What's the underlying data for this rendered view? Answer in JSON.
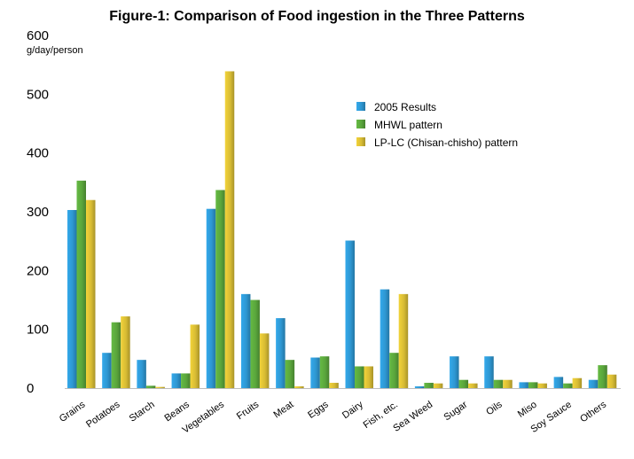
{
  "chart_data": {
    "type": "bar",
    "title": "Figure-1: Comparison of Food ingestion in the Three Patterns",
    "ylabel": "g/day/person",
    "xlabel": "",
    "ylim": [
      0,
      600
    ],
    "yticks": [
      0,
      100,
      200,
      300,
      400,
      500,
      600
    ],
    "grid": false,
    "legend_position": "top-right",
    "categories": [
      "Grains",
      "Potatoes",
      "Starch",
      "Beans",
      "Vegetables",
      "Fruits",
      "Meat",
      "Eggs",
      "Dairy",
      "Fish, etc.",
      "Sea Weed",
      "Sugar",
      "Oils",
      "Miso",
      "Soy Sauce",
      "Others"
    ],
    "series": [
      {
        "name": "2005 Results",
        "color": "#2e97d2",
        "values": [
          303,
          60,
          48,
          25,
          305,
          160,
          119,
          52,
          251,
          168,
          3,
          54,
          54,
          10,
          19,
          14
        ]
      },
      {
        "name": "MHWL pattern",
        "color": "#5aa63c",
        "values": [
          353,
          112,
          4,
          25,
          337,
          150,
          48,
          54,
          37,
          60,
          9,
          14,
          14,
          10,
          8,
          39
        ]
      },
      {
        "name": "LP-LC (Chisan-chisho) pattern",
        "color": "#d8bc34",
        "values": [
          320,
          122,
          2,
          108,
          539,
          93,
          3,
          9,
          37,
          160,
          8,
          8,
          14,
          8,
          17,
          23
        ]
      }
    ]
  }
}
